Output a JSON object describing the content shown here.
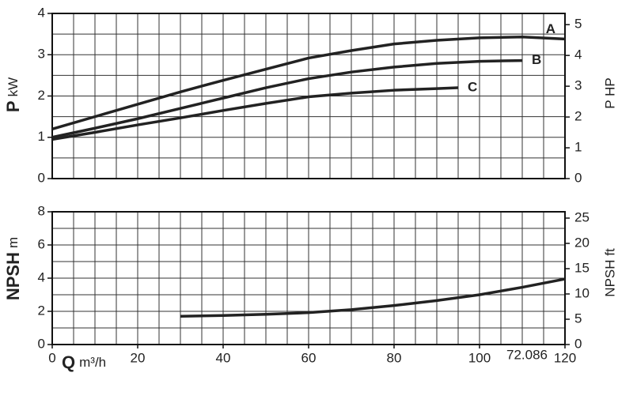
{
  "chart_data": [
    {
      "type": "line",
      "ylabel": "P",
      "ylabel_unit": "kW",
      "y2label": "P HP",
      "xlim": [
        0,
        120
      ],
      "ylim": [
        0,
        4
      ],
      "yticks": [
        0,
        1,
        2,
        3,
        4
      ],
      "y2lim": [
        0,
        5.364
      ],
      "y2ticks": [
        0,
        1,
        2,
        3,
        4,
        5
      ],
      "grid": true,
      "grid_step_x": 5,
      "grid_step_y": 0.5,
      "series": [
        {
          "name": "A",
          "color": "#222222",
          "x": [
            0,
            10,
            20,
            30,
            40,
            50,
            60,
            70,
            80,
            90,
            100,
            110,
            120
          ],
          "values": [
            1.2,
            1.5,
            1.8,
            2.1,
            2.38,
            2.65,
            2.92,
            3.1,
            3.26,
            3.35,
            3.41,
            3.43,
            3.38
          ]
        },
        {
          "name": "B",
          "color": "#222222",
          "x": [
            0,
            10,
            20,
            30,
            40,
            50,
            60,
            70,
            80,
            90,
            100,
            110
          ],
          "values": [
            1.0,
            1.22,
            1.45,
            1.7,
            1.95,
            2.2,
            2.42,
            2.58,
            2.7,
            2.79,
            2.84,
            2.86
          ]
        },
        {
          "name": "C",
          "color": "#222222",
          "x": [
            0,
            10,
            20,
            30,
            40,
            50,
            60,
            70,
            80,
            90,
            95
          ],
          "values": [
            0.95,
            1.12,
            1.3,
            1.47,
            1.65,
            1.82,
            1.98,
            2.07,
            2.14,
            2.18,
            2.2
          ]
        }
      ]
    },
    {
      "type": "line",
      "ylabel": "NPSH",
      "ylabel_unit": "m",
      "y2label": "NPSH ft",
      "xlabel": "Q",
      "xlabel_unit": "m³/h",
      "xlim": [
        0,
        120
      ],
      "xticks": [
        0,
        20,
        40,
        60,
        80,
        100,
        120
      ],
      "ylim": [
        0,
        8
      ],
      "yticks": [
        0,
        2,
        4,
        6,
        8
      ],
      "y2lim": [
        0,
        26.25
      ],
      "y2ticks": [
        0,
        5,
        10,
        15,
        20,
        25
      ],
      "grid": true,
      "grid_step_x": 5,
      "grid_step_y": 1,
      "annotation": "72.086",
      "series": [
        {
          "color": "#222222",
          "x": [
            30,
            40,
            50,
            60,
            70,
            80,
            90,
            100,
            110,
            120
          ],
          "values": [
            1.7,
            1.75,
            1.82,
            1.92,
            2.1,
            2.35,
            2.65,
            3.0,
            3.45,
            3.95
          ]
        }
      ]
    }
  ]
}
